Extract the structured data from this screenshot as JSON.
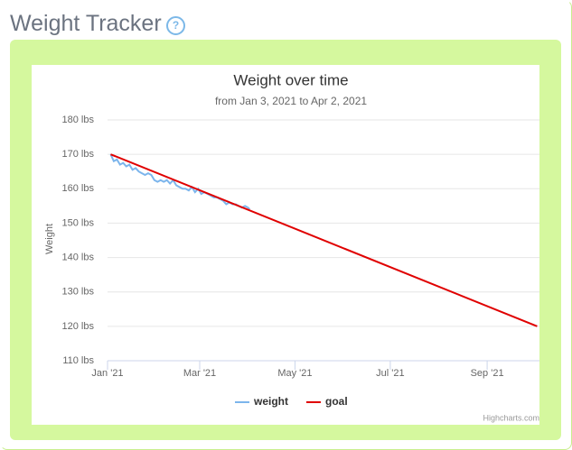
{
  "page_title": "Weight Tracker",
  "help_icon": "?",
  "chart_data": {
    "type": "line",
    "title": "Weight over time",
    "subtitle": "from Jan 3, 2021 to Apr 2, 2021",
    "y_label": "Weight",
    "credits": "Highcharts.com",
    "xlim": [
      0,
      276.5
    ],
    "xticks": [
      {
        "value": 0,
        "label": "Jan '21"
      },
      {
        "value": 59,
        "label": "Mar '21"
      },
      {
        "value": 120,
        "label": "May '21"
      },
      {
        "value": 181,
        "label": "Jul '21"
      },
      {
        "value": 243,
        "label": "Sep '21"
      }
    ],
    "ylim": [
      110,
      180
    ],
    "yticks": [
      {
        "value": 110,
        "label": "110 lbs"
      },
      {
        "value": 120,
        "label": "120 lbs"
      },
      {
        "value": 130,
        "label": "130 lbs"
      },
      {
        "value": 140,
        "label": "140 lbs"
      },
      {
        "value": 150,
        "label": "150 lbs"
      },
      {
        "value": 160,
        "label": "160 lbs"
      },
      {
        "value": 170,
        "label": "170 lbs"
      },
      {
        "value": 180,
        "label": "180 lbs"
      }
    ],
    "grid": true,
    "legend": "bottom",
    "series": [
      {
        "name": "weight",
        "color": "#7cb5ec",
        "x": [
          2,
          4,
          6,
          8,
          10,
          12,
          14,
          16,
          18,
          20,
          22,
          24,
          26,
          28,
          30,
          32,
          34,
          36,
          38,
          40,
          42,
          44,
          46,
          48,
          50,
          52,
          54,
          56,
          58,
          60,
          62,
          64,
          66,
          68,
          70,
          72,
          74,
          76,
          78,
          80,
          82,
          84,
          86,
          88,
          90,
          91
        ],
        "values": [
          170,
          168,
          168.5,
          167,
          167.5,
          166.5,
          167,
          165.5,
          166,
          165,
          164.5,
          164,
          164.5,
          164,
          162.5,
          162,
          162.5,
          162,
          162.5,
          161.5,
          162.5,
          161,
          160.5,
          160,
          160,
          159.5,
          160.5,
          159,
          160,
          158.5,
          159,
          158.5,
          158,
          157.5,
          157.5,
          157,
          156.5,
          155.5,
          156,
          155.5,
          155.5,
          155,
          154.5,
          155,
          154.5,
          154
        ]
      },
      {
        "name": "goal",
        "color": "#e00000",
        "x": [
          2,
          275
        ],
        "values": [
          170,
          120
        ]
      }
    ]
  }
}
